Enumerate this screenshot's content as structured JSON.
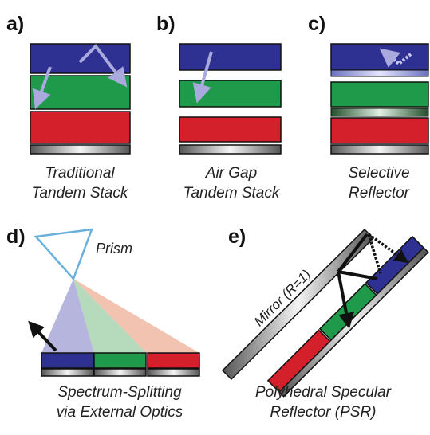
{
  "panels": [
    {
      "label": "a)",
      "caption": [
        "Traditional",
        "Tandem Stack"
      ]
    },
    {
      "label": "b)",
      "caption": [
        "Air Gap",
        "Tandem Stack"
      ]
    },
    {
      "label": "c)",
      "caption": [
        "Selective",
        "Reflector"
      ]
    },
    {
      "label": "d)",
      "caption": [
        "Spectrum-Splitting",
        "via External Optics"
      ]
    },
    {
      "label": "e)",
      "caption": [
        "Polyhedral Specular",
        "Reflector (PSR)"
      ]
    }
  ],
  "annotations": {
    "prism": "Prism",
    "mirror": "Mirror (R=1)"
  }
}
